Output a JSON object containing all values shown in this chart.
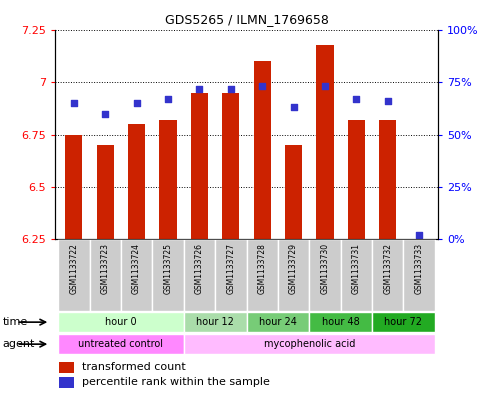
{
  "title": "GDS5265 / ILMN_1769658",
  "samples": [
    "GSM1133722",
    "GSM1133723",
    "GSM1133724",
    "GSM1133725",
    "GSM1133726",
    "GSM1133727",
    "GSM1133728",
    "GSM1133729",
    "GSM1133730",
    "GSM1133731",
    "GSM1133732",
    "GSM1133733"
  ],
  "transformed_counts": [
    6.75,
    6.7,
    6.8,
    6.82,
    6.95,
    6.95,
    7.1,
    6.7,
    7.18,
    6.82,
    6.82,
    6.25
  ],
  "percentile_ranks": [
    65,
    60,
    65,
    67,
    72,
    72,
    73,
    63,
    73,
    67,
    66,
    2
  ],
  "ylim_left": [
    6.25,
    7.25
  ],
  "ylim_right": [
    0,
    100
  ],
  "yticks_left": [
    6.25,
    6.5,
    6.75,
    7.0,
    7.25
  ],
  "yticks_right": [
    0,
    25,
    50,
    75,
    100
  ],
  "ytick_labels_left": [
    "6.25",
    "6.5",
    "6.75",
    "7",
    "7.25"
  ],
  "ytick_labels_right": [
    "0%",
    "25%",
    "50%",
    "75%",
    "100%"
  ],
  "bar_color": "#cc2200",
  "dot_color": "#3333cc",
  "bar_bottom": 6.25,
  "time_groups": [
    {
      "label": "hour 0",
      "start": 0,
      "end": 3,
      "color": "#ccffcc"
    },
    {
      "label": "hour 12",
      "start": 4,
      "end": 5,
      "color": "#aaddaa"
    },
    {
      "label": "hour 24",
      "start": 6,
      "end": 7,
      "color": "#77cc77"
    },
    {
      "label": "hour 48",
      "start": 8,
      "end": 9,
      "color": "#44bb44"
    },
    {
      "label": "hour 72",
      "start": 10,
      "end": 11,
      "color": "#22aa22"
    }
  ],
  "agent_groups": [
    {
      "label": "untreated control",
      "start": 0,
      "end": 3,
      "color": "#ff88ff"
    },
    {
      "label": "mycophenolic acid",
      "start": 4,
      "end": 11,
      "color": "#ffbbff"
    }
  ],
  "legend_bar_label": "transformed count",
  "legend_dot_label": "percentile rank within the sample",
  "sample_bg_color": "#cccccc",
  "border_color": "#aaaaaa"
}
